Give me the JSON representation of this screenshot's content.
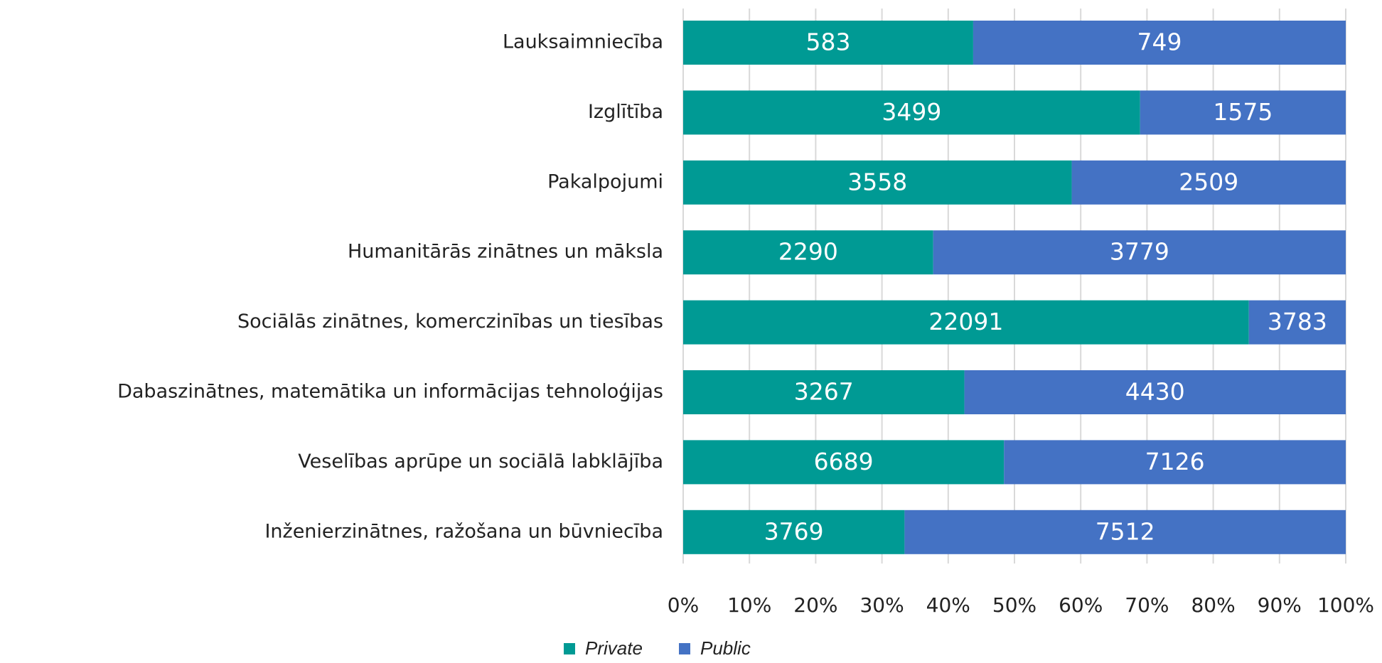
{
  "chart_data": {
    "type": "bar",
    "orientation": "horizontal",
    "stack": "percent",
    "categories": [
      "Lauksaimniecība",
      "Izglītība",
      "Pakalpojumi",
      "Humanitārās zinātnes un māksla",
      "Sociālās zinātnes, komerczinības un tiesības",
      "Dabaszinātnes, matemātika un informācijas tehnoloģijas",
      "Veselības aprūpe un sociālā labklājība",
      "Inženierzinātnes, ražošana un būvniecība"
    ],
    "series": [
      {
        "name": "Private",
        "color": "#009a94",
        "values": [
          583,
          3499,
          3558,
          2290,
          22091,
          3267,
          6689,
          3769
        ]
      },
      {
        "name": "Public",
        "color": "#4472c4",
        "values": [
          749,
          1575,
          2509,
          3779,
          3783,
          4430,
          7126,
          7512
        ]
      }
    ],
    "xlim": [
      0,
      100
    ],
    "xticks": [
      {
        "value": 0,
        "label": "0%"
      },
      {
        "value": 10,
        "label": "10%"
      },
      {
        "value": 20,
        "label": "20%"
      },
      {
        "value": 30,
        "label": "30%"
      },
      {
        "value": 40,
        "label": "40%"
      },
      {
        "value": 50,
        "label": "50%"
      },
      {
        "value": 60,
        "label": "60%"
      },
      {
        "value": 70,
        "label": "70%"
      },
      {
        "value": 80,
        "label": "80%"
      },
      {
        "value": 90,
        "label": "90%"
      },
      {
        "value": 100,
        "label": "100%"
      }
    ],
    "grid": true,
    "legend": "bottom"
  }
}
